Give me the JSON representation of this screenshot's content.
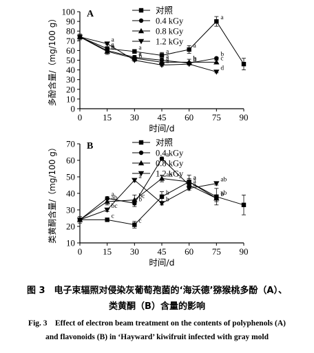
{
  "chart_data": [
    {
      "type": "line",
      "panel_label": "A",
      "xlabel": "时间/d",
      "ylabel": "多酚含量/（mg/100 g）",
      "x": [
        0,
        15,
        30,
        45,
        60,
        75,
        90
      ],
      "xlim": [
        0,
        90
      ],
      "ylim": [
        0,
        100
      ],
      "yticks": [
        0,
        10,
        20,
        30,
        40,
        50,
        60,
        70,
        80,
        90,
        100
      ],
      "legend_position": "top-center",
      "series": [
        {
          "name": "对照",
          "marker": "square",
          "values": [
            74,
            62,
            59,
            55,
            61,
            90,
            46
          ],
          "letters": [
            "",
            "a",
            "a",
            "a",
            "a",
            "a",
            ""
          ]
        },
        {
          "name": "0.4 kGy",
          "marker": "circle",
          "values": [
            74,
            60,
            53,
            50,
            47,
            52,
            null
          ],
          "letters": [
            "",
            "b",
            "a",
            "a",
            "b",
            "b",
            ""
          ]
        },
        {
          "name": "0.8 kGy",
          "marker": "triangle-up",
          "values": [
            74,
            59,
            52,
            48,
            48,
            48,
            null
          ],
          "letters": [
            "",
            "b",
            "a",
            "a",
            "b",
            "c",
            ""
          ]
        },
        {
          "name": "1.2 kGy",
          "marker": "triangle-down",
          "values": [
            74,
            67,
            50,
            45,
            46,
            38,
            null
          ],
          "letters": [
            "",
            "a",
            "b",
            "a",
            "b",
            "d",
            ""
          ]
        }
      ]
    },
    {
      "type": "line",
      "panel_label": "B",
      "xlabel": "时间/d",
      "ylabel": "类黄酮含量/（mg/100 g）",
      "x": [
        0,
        15,
        30,
        45,
        60,
        75,
        90
      ],
      "xlim": [
        0,
        90
      ],
      "ylim": [
        10,
        70
      ],
      "yticks": [
        10,
        20,
        30,
        40,
        50,
        60,
        70
      ],
      "legend_position": "top-center",
      "series": [
        {
          "name": "对照",
          "marker": "square",
          "values": [
            24,
            24,
            21,
            38,
            47,
            38,
            33
          ],
          "letters": [
            "",
            "c",
            "c",
            "b",
            "a",
            "ab",
            ""
          ]
        },
        {
          "name": "0.4 kGy",
          "marker": "circle",
          "values": [
            24,
            37,
            34,
            61,
            45,
            37,
            null
          ],
          "letters": [
            "",
            "a",
            "b",
            "a",
            "a",
            "b",
            ""
          ]
        },
        {
          "name": "0.8 kGy",
          "marker": "triangle-up",
          "values": [
            24,
            35,
            36,
            49,
            47,
            37,
            null
          ],
          "letters": [
            "",
            "ab",
            "bc",
            "ab",
            "a",
            "b",
            ""
          ]
        },
        {
          "name": "1.2 kGy",
          "marker": "triangle-down",
          "values": [
            24,
            30,
            48,
            34,
            43,
            46,
            null
          ],
          "letters": [
            "",
            "bc",
            "a",
            "b",
            "a",
            "ab",
            ""
          ]
        }
      ]
    }
  ],
  "caption": {
    "cn_line1": "图 3　电子束辐照对侵染灰葡萄孢菌的‘海沃德’猕猴桃多酚（A）、",
    "cn_line2": "类黄酮（B）含量的影响",
    "en_line1": "Fig. 3　Effect of electron beam treatment on the contents of polyphenols (A)",
    "en_line2": "and flavonoids (B) in ‘Hayward’ kiwifruit infected with gray mold"
  }
}
